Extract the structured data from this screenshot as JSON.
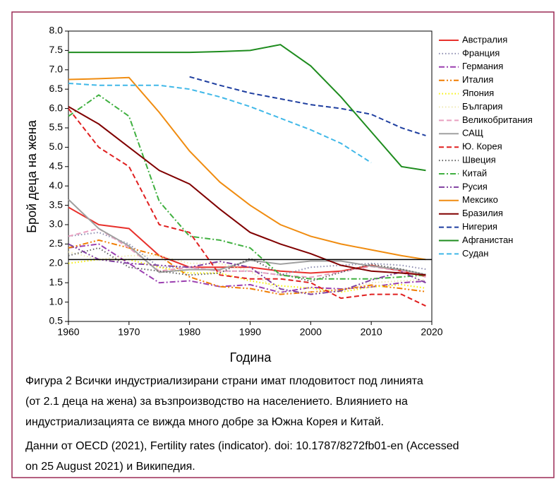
{
  "chart_data": {
    "type": "line",
    "xlabel": "Година",
    "ylabel": "Брой деца на жена",
    "x": [
      1960,
      1965,
      1970,
      1975,
      1980,
      1985,
      1990,
      1995,
      2000,
      2005,
      2010,
      2015,
      2019
    ],
    "xlim": [
      1960,
      2020
    ],
    "xticks": [
      1960,
      1970,
      1980,
      1990,
      2000,
      2010,
      2020
    ],
    "ylim": [
      0.5,
      8.0
    ],
    "yticks": [
      {
        "value": 0.5,
        "label": "0.5"
      },
      {
        "value": 1.0,
        "label": "1.0"
      },
      {
        "value": 1.5,
        "label": "1.5"
      },
      {
        "value": 2.0,
        "label": "2.0"
      },
      {
        "value": 2.5,
        "label": "2.5"
      },
      {
        "value": 3.0,
        "label": "3.0"
      },
      {
        "value": 3.5,
        "label": "3.5"
      },
      {
        "value": 4.0,
        "label": "4.0"
      },
      {
        "value": 4.5,
        "label": "4.5"
      },
      {
        "value": 5.0,
        "label": "5.0"
      },
      {
        "value": 5.5,
        "label": "5.5"
      },
      {
        "value": 6.0,
        "label": "6.0"
      },
      {
        "value": 6.5,
        "label": "6.5"
      },
      {
        "value": 7.0,
        "label": "7.0"
      },
      {
        "value": 7.5,
        "label": "7.5"
      },
      {
        "value": 8.0,
        "label": "8.0"
      }
    ],
    "hline": 2.1,
    "grid": false,
    "legend": "right",
    "series": [
      {
        "name": "Австралия",
        "color": "#e8312c",
        "dash": "solid",
        "values": [
          3.45,
          3.0,
          2.9,
          2.2,
          1.9,
          1.9,
          1.9,
          1.8,
          1.75,
          1.8,
          1.95,
          1.8,
          1.66
        ]
      },
      {
        "name": "Франция",
        "color": "#8c8cb0",
        "dash": "dot",
        "values": [
          2.7,
          2.8,
          2.5,
          1.9,
          1.9,
          1.8,
          1.8,
          1.7,
          1.9,
          1.95,
          2.0,
          1.95,
          1.85
        ]
      },
      {
        "name": "Германия",
        "color": "#9b3fb0",
        "dash": "dashdot",
        "values": [
          2.4,
          2.5,
          2.0,
          1.5,
          1.55,
          1.4,
          1.45,
          1.25,
          1.38,
          1.34,
          1.39,
          1.5,
          1.54
        ]
      },
      {
        "name": "Италия",
        "color": "#f07c00",
        "dash": "dashdotdot",
        "values": [
          2.4,
          2.6,
          2.4,
          2.2,
          1.65,
          1.4,
          1.35,
          1.2,
          1.26,
          1.32,
          1.44,
          1.35,
          1.27
        ]
      },
      {
        "name": "Япония",
        "color": "#f5f000",
        "dash": "dot",
        "values": [
          2.0,
          2.1,
          2.1,
          1.9,
          1.75,
          1.75,
          1.55,
          1.42,
          1.36,
          1.26,
          1.39,
          1.45,
          1.36
        ]
      },
      {
        "name": "България",
        "color": "#efe8b0",
        "dash": "dot",
        "values": [
          2.3,
          2.1,
          2.2,
          2.2,
          2.0,
          2.0,
          1.8,
          1.25,
          1.25,
          1.3,
          1.5,
          1.55,
          1.58
        ]
      },
      {
        "name": "Великобритания",
        "color": "#e9a0c0",
        "dash": "dash",
        "values": [
          2.7,
          2.9,
          2.4,
          1.8,
          1.9,
          1.8,
          1.8,
          1.7,
          1.64,
          1.78,
          1.92,
          1.8,
          1.65
        ]
      },
      {
        "name": "САЩ",
        "color": "#a0a0a0",
        "dash": "solid",
        "values": [
          3.65,
          2.9,
          2.45,
          1.77,
          1.84,
          1.84,
          2.08,
          1.98,
          2.06,
          2.06,
          1.93,
          1.84,
          1.71
        ]
      },
      {
        "name": "Ю. Корея",
        "color": "#e02020",
        "dash": "dash",
        "values": [
          6.0,
          5.0,
          4.5,
          3.0,
          2.8,
          1.7,
          1.6,
          1.6,
          1.5,
          1.1,
          1.2,
          1.2,
          0.9
        ]
      },
      {
        "name": "Швеция",
        "color": "#606060",
        "dash": "dot",
        "values": [
          2.2,
          2.4,
          1.9,
          1.8,
          1.7,
          1.75,
          2.13,
          1.73,
          1.54,
          1.77,
          1.98,
          1.85,
          1.71
        ]
      },
      {
        "name": "Китай",
        "color": "#40b040",
        "dash": "dashdot",
        "values": [
          5.8,
          6.35,
          5.8,
          3.6,
          2.7,
          2.6,
          2.4,
          1.7,
          1.6,
          1.6,
          1.6,
          1.65,
          1.7
        ]
      },
      {
        "name": "Русия",
        "color": "#8040a0",
        "dash": "dashdotdot",
        "values": [
          2.5,
          2.1,
          2.0,
          1.95,
          1.9,
          2.05,
          1.9,
          1.34,
          1.2,
          1.29,
          1.57,
          1.78,
          1.5
        ]
      },
      {
        "name": "Мексико",
        "color": "#f08c10",
        "dash": "solid",
        "values": [
          6.75,
          6.77,
          6.8,
          5.9,
          4.9,
          4.1,
          3.5,
          3.0,
          2.7,
          2.5,
          2.35,
          2.2,
          2.1
        ]
      },
      {
        "name": "Бразилия",
        "color": "#800000",
        "dash": "solid",
        "values": [
          6.05,
          5.6,
          5.0,
          4.4,
          4.05,
          3.4,
          2.8,
          2.5,
          2.25,
          1.95,
          1.8,
          1.75,
          1.7
        ]
      },
      {
        "name": "Нигерия",
        "color": "#1f3fa0",
        "dash": "dash",
        "values": [
          null,
          null,
          null,
          null,
          6.82,
          6.6,
          6.4,
          6.25,
          6.1,
          6.0,
          5.85,
          5.5,
          5.3
        ]
      },
      {
        "name": "Афганистан",
        "color": "#1e8c1e",
        "dash": "solid",
        "values": [
          7.45,
          7.45,
          7.45,
          7.45,
          7.45,
          7.47,
          7.5,
          7.65,
          7.1,
          6.3,
          5.4,
          4.5,
          4.4
        ]
      },
      {
        "name": "Судан",
        "color": "#40b8e8",
        "dash": "dash",
        "values": [
          6.65,
          6.6,
          6.6,
          6.6,
          6.5,
          6.3,
          6.05,
          5.75,
          5.45,
          5.1,
          4.6,
          null,
          null
        ]
      }
    ]
  },
  "caption": [
    "Фигура  2 Всички индустриализирани страни имат плодовитост под линията",
    "(от 2.1 деца на жена) за възпроизводство на населението. Влиянието на",
    "индустриализацията се вижда много добре за Южна Корея и Китай.",
    "Данни от OECD (2021), Fertility rates (indicator). doi: 10.1787/8272fb01-en (Accessed",
    "on 25 August 2021)  и Википедия."
  ]
}
